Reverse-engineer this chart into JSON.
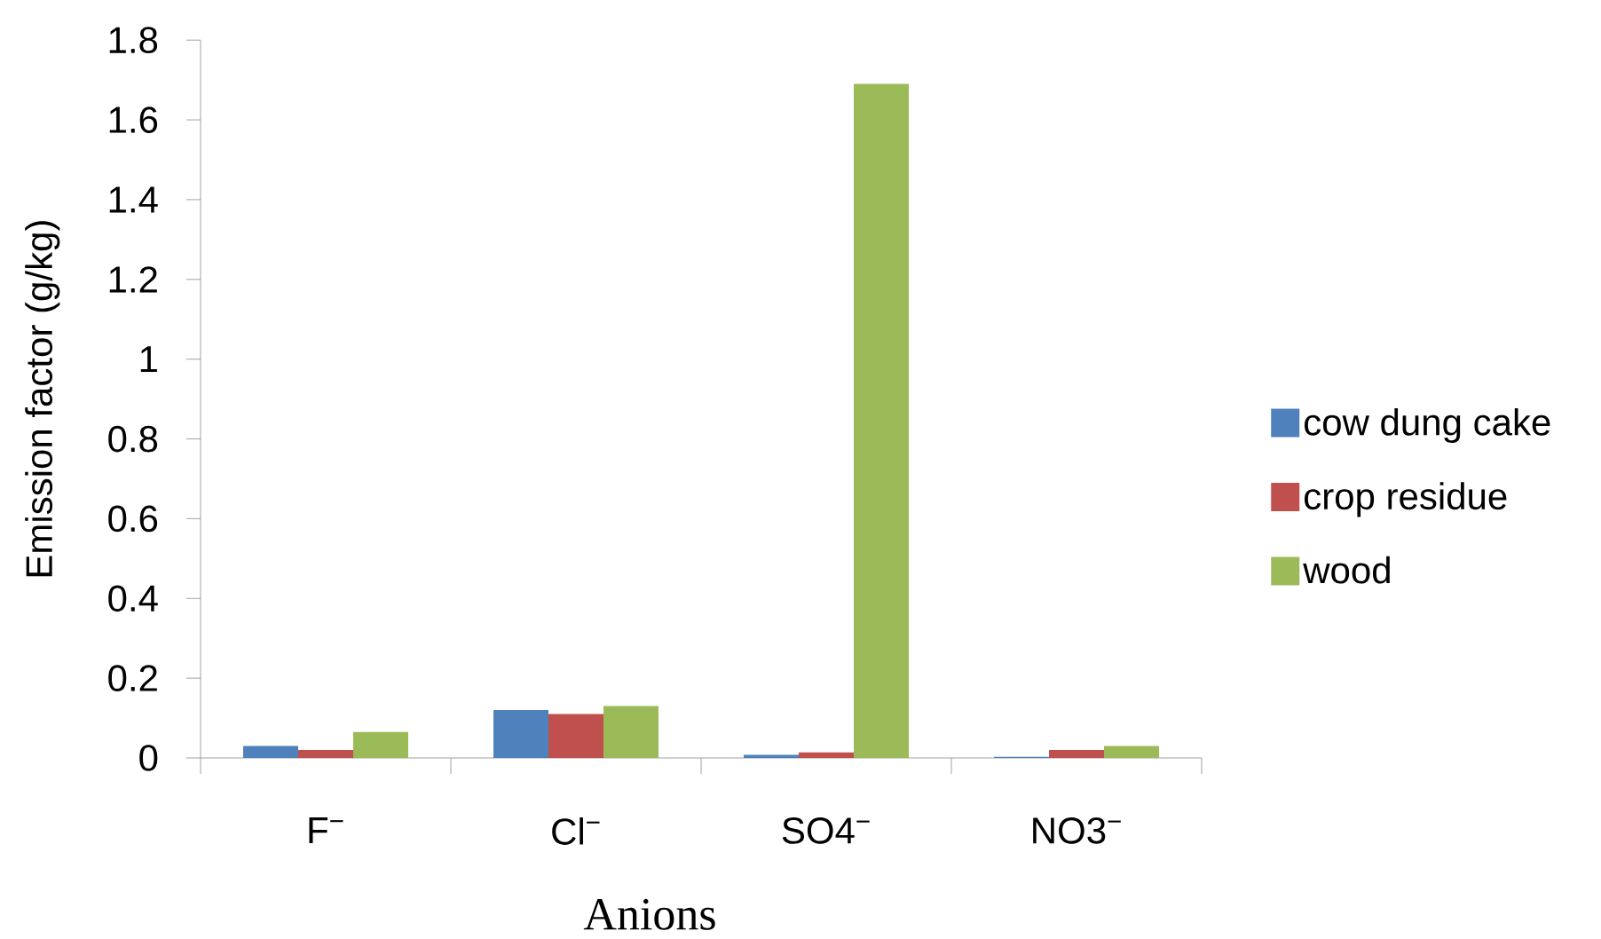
{
  "chart_data": {
    "type": "bar",
    "xlabel": "Anions",
    "ylabel": "Emission factor (g/kg)",
    "categories": [
      "F$^{−}$",
      "Cl$^{−}$",
      "SO4$^{−}$",
      "NO3$^{−}$"
    ],
    "series": [
      {
        "name": "cow dung cake",
        "color": "#4f81bd",
        "values": [
          0.03,
          0.12,
          0.008,
          0.003
        ]
      },
      {
        "name": "crop residue",
        "color": "#c0504d",
        "values": [
          0.02,
          0.11,
          0.014,
          0.02
        ]
      },
      {
        "name": "wood",
        "color": "#9bbb59",
        "values": [
          0.065,
          0.13,
          1.69,
          0.03
        ]
      }
    ],
    "ylim": [
      0,
      1.8
    ],
    "yticks": [
      0,
      0.2,
      0.4,
      0.6,
      0.8,
      1,
      1.2,
      1.4,
      1.6,
      1.8
    ],
    "legend": "right"
  }
}
